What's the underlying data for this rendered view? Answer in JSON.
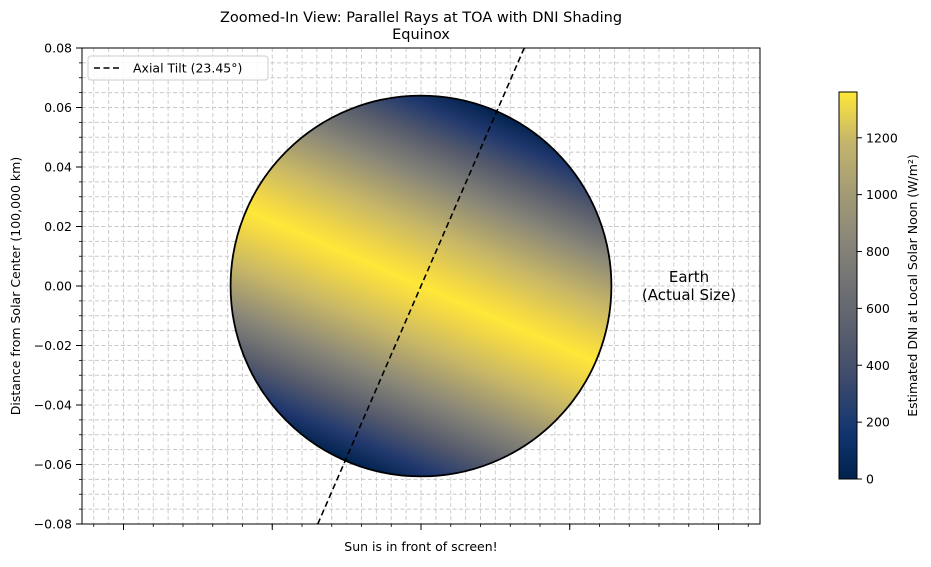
{
  "chart_data": {
    "type": "heatmap",
    "title": "Zoomed-In View: Parallel Rays at TOA with DNI Shading",
    "subtitle": "Equinox",
    "xlabel": "Sun is in front of screen!",
    "ylabel": "Distance from Solar Center (100,000 km)",
    "ylim": [
      -0.08,
      0.08
    ],
    "y_ticks": [
      -0.08,
      -0.06,
      -0.04,
      -0.02,
      0.0,
      0.02,
      0.04,
      0.06,
      0.08
    ],
    "y_tick_labels": [
      "−0.08",
      "−0.06",
      "−0.04",
      "−0.02",
      "0.00",
      "0.02",
      "0.04",
      "0.06",
      "0.08"
    ],
    "grid": true,
    "earth": {
      "center": [
        0,
        0
      ],
      "radius": 0.064,
      "label": "Earth\n(Actual Size)"
    },
    "axial_tilt": {
      "label": "Axial Tilt (23.45°)",
      "angle_deg": 23.45,
      "style": "dashed"
    },
    "legend_position": "top-left",
    "colorbar": {
      "label": "Estimated DNI at Local Solar Noon (W/m²)",
      "min": 0,
      "max": 1361,
      "ticks": [
        0,
        200,
        400,
        600,
        800,
        1000,
        1200
      ],
      "tick_labels": [
        "0",
        "200",
        "400",
        "600",
        "800",
        "1000",
        "1200"
      ],
      "colormap": "cividis"
    }
  }
}
